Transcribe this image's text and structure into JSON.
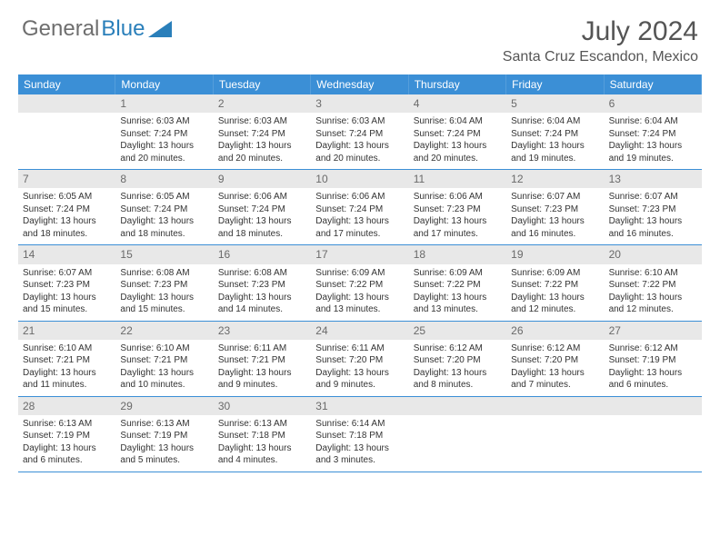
{
  "brand": {
    "word1": "General",
    "word2": "Blue"
  },
  "title": "July 2024",
  "location": "Santa Cruz Escandon, Mexico",
  "colors": {
    "header_bg": "#3b8fd6",
    "daynum_bg": "#e8e8e8",
    "text": "#333333",
    "brand_gray": "#6e6e6e",
    "brand_blue": "#2a7fba"
  },
  "weekdays": [
    "Sunday",
    "Monday",
    "Tuesday",
    "Wednesday",
    "Thursday",
    "Friday",
    "Saturday"
  ],
  "weeks": [
    [
      null,
      {
        "n": "1",
        "sunrise": "6:03 AM",
        "sunset": "7:24 PM",
        "dl": "13 hours and 20 minutes."
      },
      {
        "n": "2",
        "sunrise": "6:03 AM",
        "sunset": "7:24 PM",
        "dl": "13 hours and 20 minutes."
      },
      {
        "n": "3",
        "sunrise": "6:03 AM",
        "sunset": "7:24 PM",
        "dl": "13 hours and 20 minutes."
      },
      {
        "n": "4",
        "sunrise": "6:04 AM",
        "sunset": "7:24 PM",
        "dl": "13 hours and 20 minutes."
      },
      {
        "n": "5",
        "sunrise": "6:04 AM",
        "sunset": "7:24 PM",
        "dl": "13 hours and 19 minutes."
      },
      {
        "n": "6",
        "sunrise": "6:04 AM",
        "sunset": "7:24 PM",
        "dl": "13 hours and 19 minutes."
      }
    ],
    [
      {
        "n": "7",
        "sunrise": "6:05 AM",
        "sunset": "7:24 PM",
        "dl": "13 hours and 18 minutes."
      },
      {
        "n": "8",
        "sunrise": "6:05 AM",
        "sunset": "7:24 PM",
        "dl": "13 hours and 18 minutes."
      },
      {
        "n": "9",
        "sunrise": "6:06 AM",
        "sunset": "7:24 PM",
        "dl": "13 hours and 18 minutes."
      },
      {
        "n": "10",
        "sunrise": "6:06 AM",
        "sunset": "7:24 PM",
        "dl": "13 hours and 17 minutes."
      },
      {
        "n": "11",
        "sunrise": "6:06 AM",
        "sunset": "7:23 PM",
        "dl": "13 hours and 17 minutes."
      },
      {
        "n": "12",
        "sunrise": "6:07 AM",
        "sunset": "7:23 PM",
        "dl": "13 hours and 16 minutes."
      },
      {
        "n": "13",
        "sunrise": "6:07 AM",
        "sunset": "7:23 PM",
        "dl": "13 hours and 16 minutes."
      }
    ],
    [
      {
        "n": "14",
        "sunrise": "6:07 AM",
        "sunset": "7:23 PM",
        "dl": "13 hours and 15 minutes."
      },
      {
        "n": "15",
        "sunrise": "6:08 AM",
        "sunset": "7:23 PM",
        "dl": "13 hours and 15 minutes."
      },
      {
        "n": "16",
        "sunrise": "6:08 AM",
        "sunset": "7:23 PM",
        "dl": "13 hours and 14 minutes."
      },
      {
        "n": "17",
        "sunrise": "6:09 AM",
        "sunset": "7:22 PM",
        "dl": "13 hours and 13 minutes."
      },
      {
        "n": "18",
        "sunrise": "6:09 AM",
        "sunset": "7:22 PM",
        "dl": "13 hours and 13 minutes."
      },
      {
        "n": "19",
        "sunrise": "6:09 AM",
        "sunset": "7:22 PM",
        "dl": "13 hours and 12 minutes."
      },
      {
        "n": "20",
        "sunrise": "6:10 AM",
        "sunset": "7:22 PM",
        "dl": "13 hours and 12 minutes."
      }
    ],
    [
      {
        "n": "21",
        "sunrise": "6:10 AM",
        "sunset": "7:21 PM",
        "dl": "13 hours and 11 minutes."
      },
      {
        "n": "22",
        "sunrise": "6:10 AM",
        "sunset": "7:21 PM",
        "dl": "13 hours and 10 minutes."
      },
      {
        "n": "23",
        "sunrise": "6:11 AM",
        "sunset": "7:21 PM",
        "dl": "13 hours and 9 minutes."
      },
      {
        "n": "24",
        "sunrise": "6:11 AM",
        "sunset": "7:20 PM",
        "dl": "13 hours and 9 minutes."
      },
      {
        "n": "25",
        "sunrise": "6:12 AM",
        "sunset": "7:20 PM",
        "dl": "13 hours and 8 minutes."
      },
      {
        "n": "26",
        "sunrise": "6:12 AM",
        "sunset": "7:20 PM",
        "dl": "13 hours and 7 minutes."
      },
      {
        "n": "27",
        "sunrise": "6:12 AM",
        "sunset": "7:19 PM",
        "dl": "13 hours and 6 minutes."
      }
    ],
    [
      {
        "n": "28",
        "sunrise": "6:13 AM",
        "sunset": "7:19 PM",
        "dl": "13 hours and 6 minutes."
      },
      {
        "n": "29",
        "sunrise": "6:13 AM",
        "sunset": "7:19 PM",
        "dl": "13 hours and 5 minutes."
      },
      {
        "n": "30",
        "sunrise": "6:13 AM",
        "sunset": "7:18 PM",
        "dl": "13 hours and 4 minutes."
      },
      {
        "n": "31",
        "sunrise": "6:14 AM",
        "sunset": "7:18 PM",
        "dl": "13 hours and 3 minutes."
      },
      null,
      null,
      null
    ]
  ],
  "labels": {
    "sunrise": "Sunrise:",
    "sunset": "Sunset:",
    "daylight": "Daylight:"
  }
}
